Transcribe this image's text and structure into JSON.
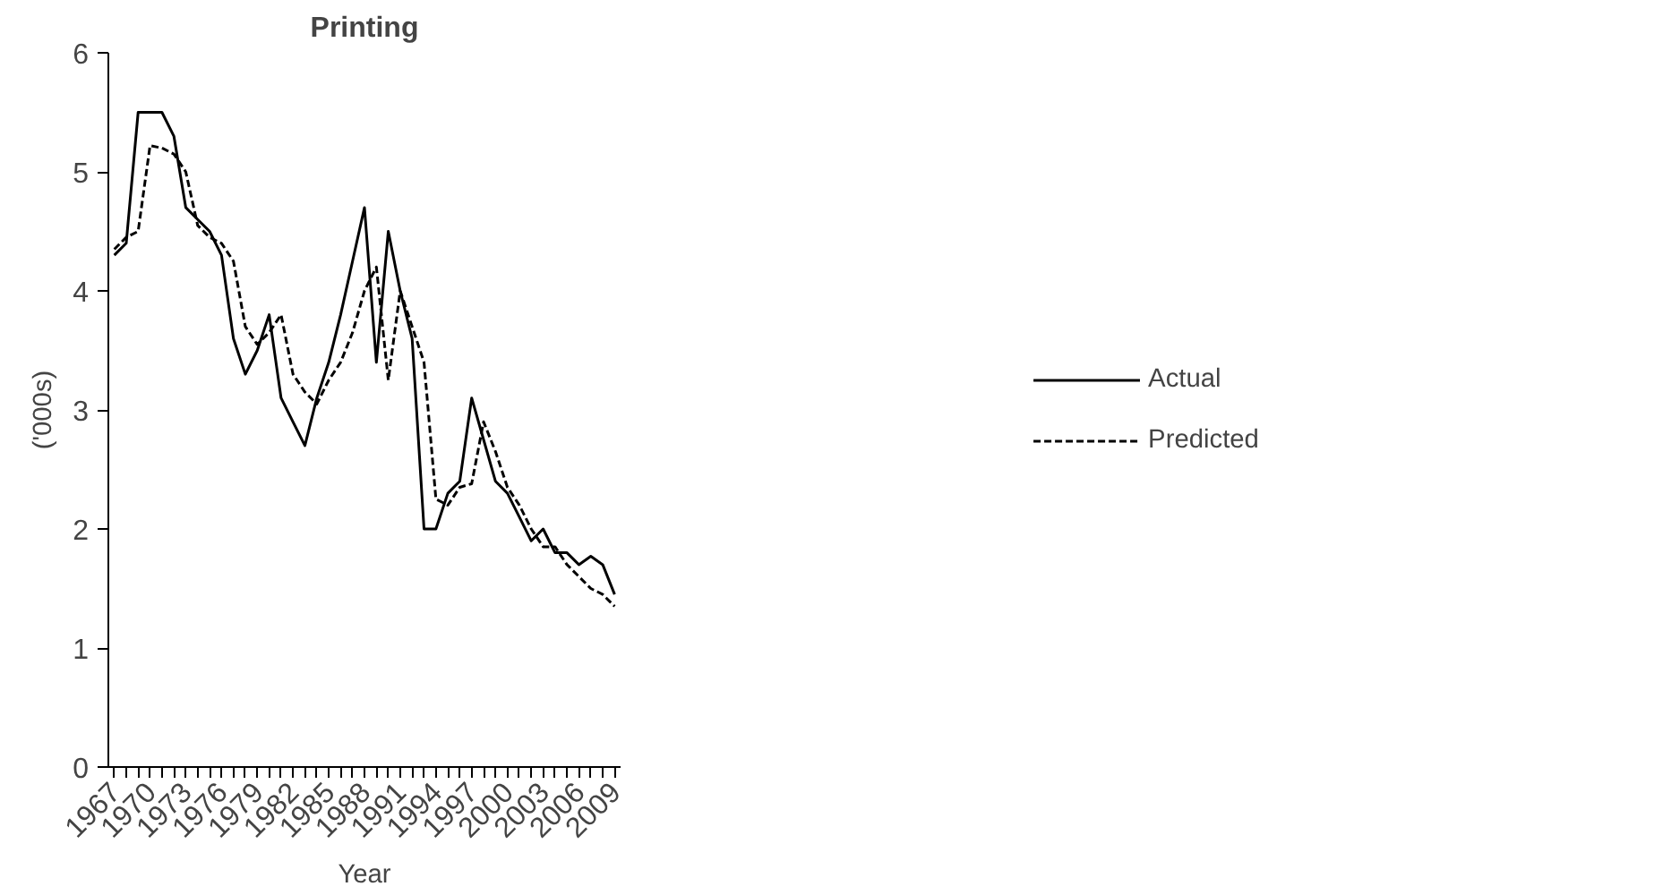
{
  "chart_data": {
    "type": "line",
    "title": "Printing",
    "xlabel": "Year",
    "ylabel": "('000s)",
    "x": [
      1967,
      1968,
      1969,
      1970,
      1971,
      1972,
      1973,
      1974,
      1975,
      1976,
      1977,
      1978,
      1979,
      1980,
      1981,
      1982,
      1983,
      1984,
      1985,
      1986,
      1987,
      1988,
      1989,
      1990,
      1991,
      1992,
      1993,
      1994,
      1995,
      1996,
      1997,
      1998,
      1999,
      2000,
      2001,
      2002,
      2003,
      2004,
      2005,
      2006,
      2007,
      2008,
      2009
    ],
    "series": [
      {
        "name": "Actual",
        "color": "#000000",
        "line_style": "solid",
        "values": [
          4.3,
          4.4,
          5.5,
          5.5,
          5.5,
          5.3,
          4.7,
          4.6,
          4.5,
          4.3,
          3.6,
          3.3,
          3.5,
          3.8,
          3.1,
          2.9,
          2.7,
          3.1,
          3.4,
          3.8,
          4.25,
          4.7,
          3.4,
          4.5,
          4.0,
          3.6,
          2.0,
          2.0,
          2.3,
          2.4,
          3.1,
          2.75,
          2.4,
          2.3,
          2.1,
          1.9,
          2.0,
          1.8,
          1.8,
          1.7,
          1.77,
          1.7,
          1.45
        ]
      },
      {
        "name": "Predicted",
        "color": "#000000",
        "line_style": "dashed",
        "values": [
          4.35,
          4.45,
          4.5,
          5.22,
          5.2,
          5.15,
          5.0,
          4.55,
          4.45,
          4.4,
          4.25,
          3.7,
          3.55,
          3.65,
          3.8,
          3.3,
          3.15,
          3.05,
          3.25,
          3.4,
          3.65,
          4.0,
          4.2,
          3.25,
          4.0,
          3.7,
          3.4,
          2.25,
          2.2,
          2.35,
          2.38,
          2.9,
          2.65,
          2.35,
          2.2,
          2.0,
          1.85,
          1.85,
          1.7,
          1.6,
          1.5,
          1.45,
          1.35
        ]
      }
    ],
    "xlim": [
      1966.5,
      2009.5
    ],
    "xticks": [
      1967,
      {
        "value": 1968,
        "label": null
      },
      {
        "value": 1969,
        "label": null
      },
      1970,
      {
        "value": 1971,
        "label": null
      },
      {
        "value": 1972,
        "label": null
      },
      1973,
      {
        "value": 1974,
        "label": null
      },
      {
        "value": 1975,
        "label": null
      },
      1976,
      {
        "value": 1977,
        "label": null
      },
      {
        "value": 1978,
        "label": null
      },
      1979,
      {
        "value": 1980,
        "label": null
      },
      {
        "value": 1981,
        "label": null
      },
      1982,
      {
        "value": 1983,
        "label": null
      },
      {
        "value": 1984,
        "label": null
      },
      1985,
      {
        "value": 1986,
        "label": null
      },
      {
        "value": 1987,
        "label": null
      },
      1988,
      {
        "value": 1989,
        "label": null
      },
      {
        "value": 1990,
        "label": null
      },
      1991,
      {
        "value": 1992,
        "label": null
      },
      {
        "value": 1993,
        "label": null
      },
      1994,
      {
        "value": 1995,
        "label": null
      },
      {
        "value": 1996,
        "label": null
      },
      1997,
      {
        "value": 1998,
        "label": null
      },
      {
        "value": 1999,
        "label": null
      },
      2000,
      {
        "value": 2001,
        "label": null
      },
      {
        "value": 2002,
        "label": null
      },
      2003,
      {
        "value": 2004,
        "label": null
      },
      {
        "value": 2005,
        "label": null
      },
      2006,
      {
        "value": 2007,
        "label": null
      },
      {
        "value": 2008,
        "label": null
      },
      2009
    ],
    "ylim": [
      0,
      6
    ],
    "yticks": [
      0,
      1,
      2,
      3,
      4,
      5,
      6
    ],
    "grid": false,
    "legend": "right",
    "marker": "none"
  }
}
